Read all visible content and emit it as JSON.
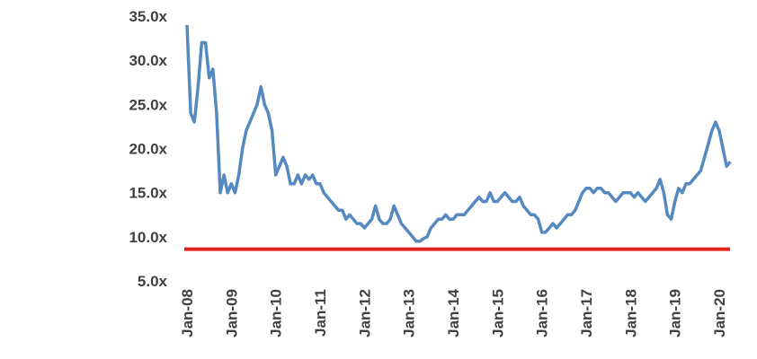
{
  "chart_data": {
    "type": "line",
    "x": [
      "Jan-08",
      null,
      null,
      null,
      null,
      null,
      null,
      null,
      null,
      null,
      null,
      null,
      "Jan-09",
      null,
      null,
      null,
      null,
      null,
      null,
      null,
      null,
      null,
      null,
      null,
      "Jan-10",
      null,
      null,
      null,
      null,
      null,
      null,
      null,
      null,
      null,
      null,
      null,
      "Jan-11",
      null,
      null,
      null,
      null,
      null,
      null,
      null,
      null,
      null,
      null,
      null,
      "Jan-12",
      null,
      null,
      null,
      null,
      null,
      null,
      null,
      null,
      null,
      null,
      null,
      "Jan-13",
      null,
      null,
      null,
      null,
      null,
      null,
      null,
      null,
      null,
      null,
      null,
      "Jan-14",
      null,
      null,
      null,
      null,
      null,
      null,
      null,
      null,
      null,
      null,
      null,
      "Jan-15",
      null,
      null,
      null,
      null,
      null,
      null,
      null,
      null,
      null,
      null,
      null,
      "Jan-16",
      null,
      null,
      null,
      null,
      null,
      null,
      null,
      null,
      null,
      null,
      null,
      "Jan-17",
      null,
      null,
      null,
      null,
      null,
      null,
      null,
      null,
      null,
      null,
      null,
      "Jan-18",
      null,
      null,
      null,
      null,
      null,
      null,
      null,
      null,
      null,
      null,
      null,
      "Jan-19",
      null,
      null,
      null,
      null,
      null,
      null,
      null,
      null,
      null,
      null,
      null,
      "Jan-20",
      null,
      null,
      null
    ],
    "series": [
      {
        "color": "#5589c0",
        "values": [
          34,
          24,
          23,
          27,
          32,
          32,
          28,
          29,
          24,
          15,
          17,
          15,
          16,
          15,
          17,
          20,
          22,
          23,
          24,
          25,
          27,
          25,
          24,
          22,
          17,
          18,
          19,
          18,
          16,
          16,
          17,
          16,
          17,
          16.5,
          17,
          16,
          16,
          15,
          14.5,
          14,
          13.5,
          13,
          13,
          12,
          12.5,
          12,
          11.5,
          11.5,
          11,
          11.5,
          12,
          13.5,
          12,
          11.5,
          11.5,
          12,
          13.5,
          12.5,
          11.5,
          11,
          10.5,
          10,
          9.5,
          9.5,
          9.8,
          10,
          11,
          11.5,
          12,
          12,
          12.5,
          12,
          12,
          12.5,
          12.5,
          12.5,
          13,
          13.5,
          14,
          14.5,
          14,
          14,
          15,
          14,
          14,
          14.5,
          15,
          14.5,
          14,
          14,
          14.5,
          13.5,
          13,
          12.5,
          12.5,
          12,
          10.5,
          10.5,
          11,
          11.5,
          11,
          11.5,
          12,
          12.5,
          12.5,
          13,
          14,
          15,
          15.5,
          15.5,
          15,
          15.5,
          15.5,
          15,
          15,
          14.5,
          14,
          14.5,
          15,
          15,
          15,
          14.5,
          15,
          14.5,
          14,
          14.5,
          15,
          15.5,
          16.5,
          15,
          12.5,
          12,
          14,
          15.5,
          15,
          16,
          16,
          16.5,
          17,
          17.5,
          19,
          20.5,
          22,
          23,
          22,
          20,
          18,
          18.5
        ]
      }
    ],
    "hlines": [
      {
        "value": 8.6,
        "color": "#e3201b"
      }
    ],
    "ylim": [
      5,
      35
    ],
    "yticks": [
      {
        "value": 5,
        "label": "5.0x"
      },
      {
        "value": 10,
        "label": "10.0x"
      },
      {
        "value": 15,
        "label": "15.0x"
      },
      {
        "value": 20,
        "label": "20.0x"
      },
      {
        "value": 25,
        "label": "25.0x"
      },
      {
        "value": 30,
        "label": "30.0x"
      },
      {
        "value": 35,
        "label": "35.0x"
      }
    ]
  }
}
